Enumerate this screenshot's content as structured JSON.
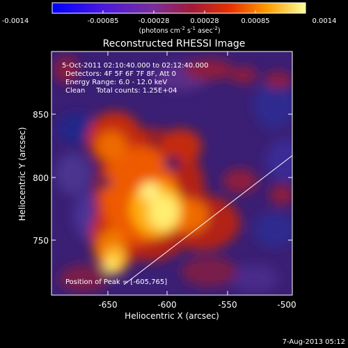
{
  "colorbar": {
    "ticks": [
      "-0.0014",
      "-0.00085",
      "-0.00028",
      "0.00028",
      "0.00085",
      "0.0014"
    ],
    "unit_base": "(photons cm",
    "unit_exp1": "-2",
    "unit_mid": " s",
    "unit_exp2": "-1",
    "unit_mid2": " asec",
    "unit_exp3": "-2",
    "unit_end": ")"
  },
  "image": {
    "title": "Reconstructed RHESSI Image",
    "info_lines": [
      "5-Oct-2011 02:10:40.000 to 02:12:40.000",
      "Detectors: 4F 5F 6F 7F 8F, Att 0",
      "Energy Range: 6.0 - 12.0 keV",
      "Clean     Total counts: 1.25E+04"
    ],
    "peak_text": "Position of Peak = [-605,765]",
    "colors": {
      "background": "#000000",
      "text": "#ffffff"
    }
  },
  "axes": {
    "xlabel": "Heliocentric X (arcsec)",
    "ylabel": "Heliocentric Y (arcsec)",
    "xticks": [
      "-650",
      "-600",
      "-550",
      "-500"
    ],
    "yticks": [
      "750",
      "800",
      "850"
    ]
  },
  "footer": {
    "timestamp": "7-Aug-2013 05:12"
  }
}
